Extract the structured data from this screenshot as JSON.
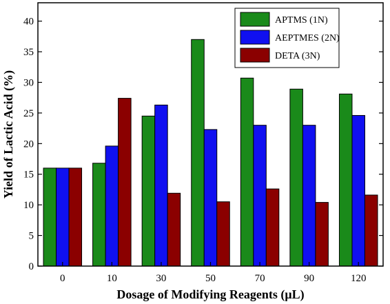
{
  "chart_data": {
    "type": "bar",
    "xlabel": "Dosage of Modifying Reagents (μL)",
    "ylabel": "Yield of Lactic Acid (%)",
    "categories": [
      "0",
      "10",
      "30",
      "50",
      "70",
      "90",
      "120"
    ],
    "ylim": [
      0,
      43
    ],
    "yticks": [
      0,
      5,
      10,
      15,
      20,
      25,
      30,
      35,
      40
    ],
    "grid": false,
    "legend_position": "top-right",
    "series": [
      {
        "name": "APTMS (1N)",
        "color": "#1a8a1a",
        "values": [
          16.0,
          16.8,
          24.5,
          37.0,
          30.7,
          28.9,
          28.1
        ]
      },
      {
        "name": "AEPTMES (2N)",
        "color": "#1010f0",
        "values": [
          16.0,
          19.6,
          26.3,
          22.3,
          23.0,
          23.0,
          24.6
        ]
      },
      {
        "name": "DETA (3N)",
        "color": "#8b0000",
        "values": [
          16.0,
          27.4,
          11.9,
          10.5,
          12.6,
          10.4,
          11.6
        ]
      }
    ]
  }
}
